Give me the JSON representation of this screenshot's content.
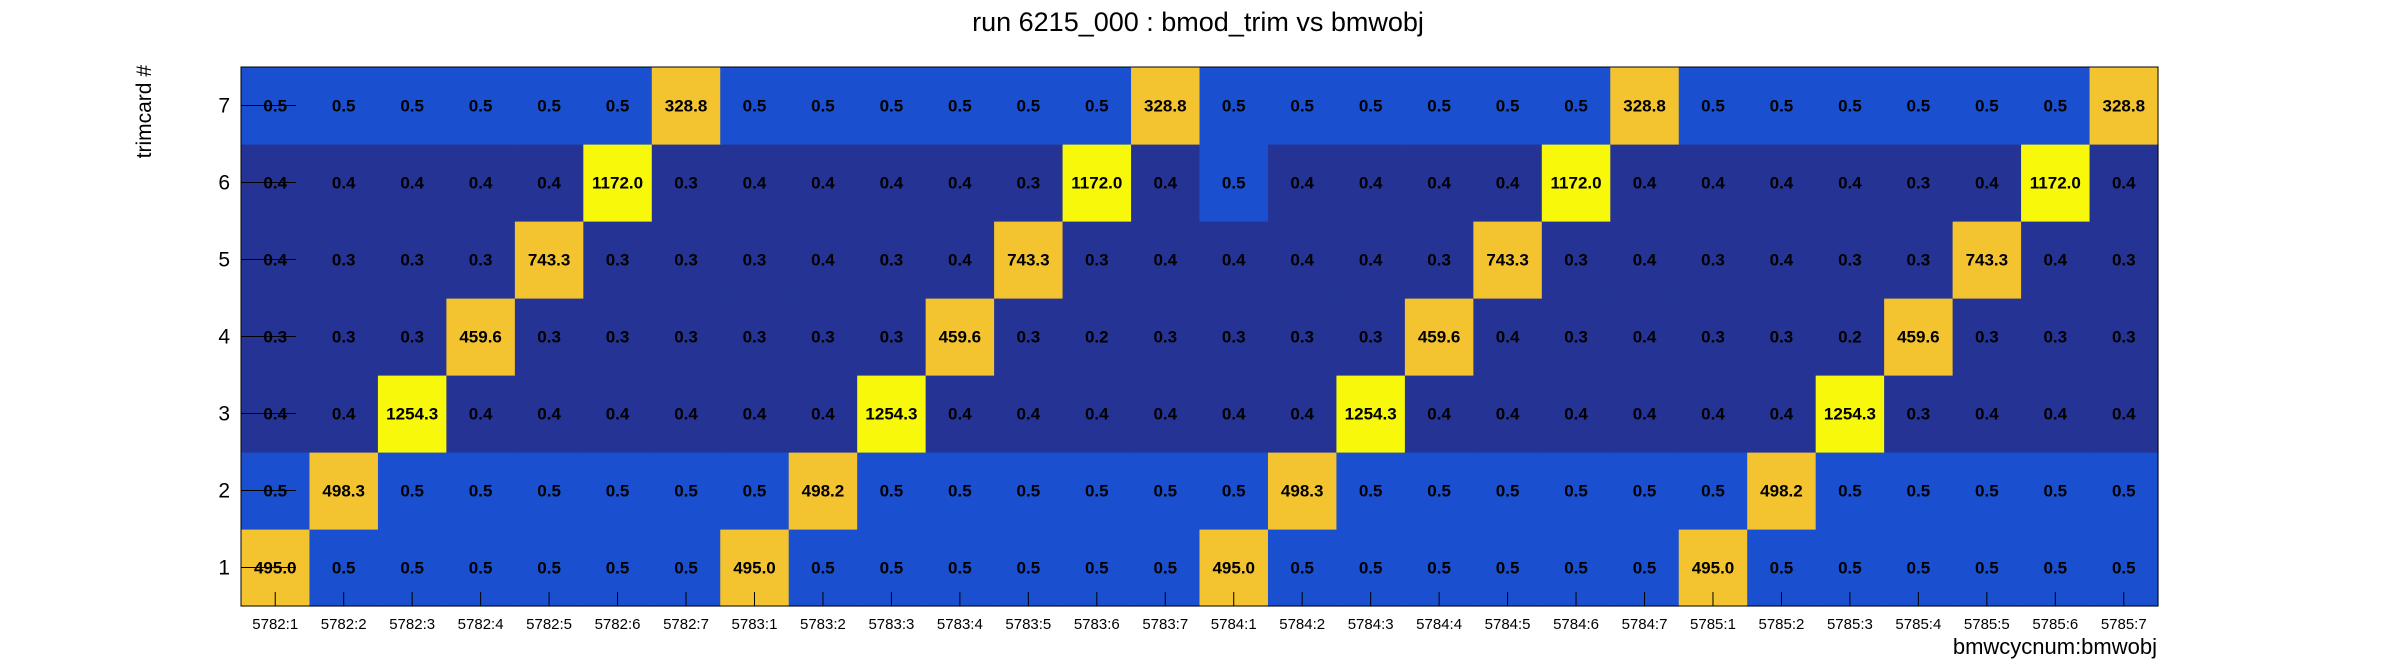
{
  "chart_data": {
    "type": "heatmap",
    "title": "run 6215_000 : bmod_trim vs bmwobj",
    "xlabel": "bmwcycnum:bmwobj",
    "ylabel": "trimcard #",
    "x": [
      "5782:1",
      "5782:2",
      "5782:3",
      "5782:4",
      "5782:5",
      "5782:6",
      "5782:7",
      "5783:1",
      "5783:2",
      "5783:3",
      "5783:4",
      "5783:5",
      "5783:6",
      "5783:7",
      "5784:1",
      "5784:2",
      "5784:3",
      "5784:4",
      "5784:5",
      "5784:6",
      "5784:7",
      "5785:1",
      "5785:2",
      "5785:3",
      "5785:4",
      "5785:5",
      "5785:6",
      "5785:7"
    ],
    "y": [
      "1",
      "2",
      "3",
      "4",
      "5",
      "6",
      "7"
    ],
    "values": [
      [
        "495.0",
        "0.5",
        "0.5",
        "0.5",
        "0.5",
        "0.5",
        "0.5",
        "495.0",
        "0.5",
        "0.5",
        "0.5",
        "0.5",
        "0.5",
        "0.5",
        "495.0",
        "0.5",
        "0.5",
        "0.5",
        "0.5",
        "0.5",
        "0.5",
        "495.0",
        "0.5",
        "0.5",
        "0.5",
        "0.5",
        "0.5",
        "0.5"
      ],
      [
        "0.5",
        "498.3",
        "0.5",
        "0.5",
        "0.5",
        "0.5",
        "0.5",
        "0.5",
        "498.2",
        "0.5",
        "0.5",
        "0.5",
        "0.5",
        "0.5",
        "0.5",
        "498.3",
        "0.5",
        "0.5",
        "0.5",
        "0.5",
        "0.5",
        "0.5",
        "498.2",
        "0.5",
        "0.5",
        "0.5",
        "0.5",
        "0.5"
      ],
      [
        "0.4",
        "0.4",
        "1254.3",
        "0.4",
        "0.4",
        "0.4",
        "0.4",
        "0.4",
        "0.4",
        "1254.3",
        "0.4",
        "0.4",
        "0.4",
        "0.4",
        "0.4",
        "0.4",
        "1254.3",
        "0.4",
        "0.4",
        "0.4",
        "0.4",
        "0.4",
        "0.4",
        "1254.3",
        "0.3",
        "0.4",
        "0.4",
        "0.4"
      ],
      [
        "0.3",
        "0.3",
        "0.3",
        "459.6",
        "0.3",
        "0.3",
        "0.3",
        "0.3",
        "0.3",
        "0.3",
        "459.6",
        "0.3",
        "0.2",
        "0.3",
        "0.3",
        "0.3",
        "0.3",
        "459.6",
        "0.4",
        "0.3",
        "0.4",
        "0.3",
        "0.3",
        "0.2",
        "459.6",
        "0.3",
        "0.3",
        "0.3"
      ],
      [
        "0.4",
        "0.3",
        "0.3",
        "0.3",
        "743.3",
        "0.3",
        "0.3",
        "0.3",
        "0.4",
        "0.3",
        "0.4",
        "743.3",
        "0.3",
        "0.4",
        "0.4",
        "0.4",
        "0.4",
        "0.3",
        "743.3",
        "0.3",
        "0.4",
        "0.3",
        "0.4",
        "0.3",
        "0.3",
        "743.3",
        "0.4",
        "0.3"
      ],
      [
        "0.4",
        "0.4",
        "0.4",
        "0.4",
        "0.4",
        "1172.0",
        "0.3",
        "0.4",
        "0.4",
        "0.4",
        "0.4",
        "0.3",
        "1172.0",
        "0.4",
        "0.5",
        "0.4",
        "0.4",
        "0.4",
        "0.4",
        "1172.0",
        "0.4",
        "0.4",
        "0.4",
        "0.4",
        "0.3",
        "0.4",
        "1172.0",
        "0.4"
      ],
      [
        "0.5",
        "0.5",
        "0.5",
        "0.5",
        "0.5",
        "0.5",
        "328.8",
        "0.5",
        "0.5",
        "0.5",
        "0.5",
        "0.5",
        "0.5",
        "328.8",
        "0.5",
        "0.5",
        "0.5",
        "0.5",
        "0.5",
        "0.5",
        "328.8",
        "0.5",
        "0.5",
        "0.5",
        "0.5",
        "0.5",
        "0.5",
        "328.8"
      ]
    ],
    "colors": {
      "low": "#253494",
      "mid": "#1a4fd0",
      "high_orange": "#f4c430",
      "high_yellow": "#f8f80a"
    },
    "grid": false,
    "legend": "none"
  }
}
